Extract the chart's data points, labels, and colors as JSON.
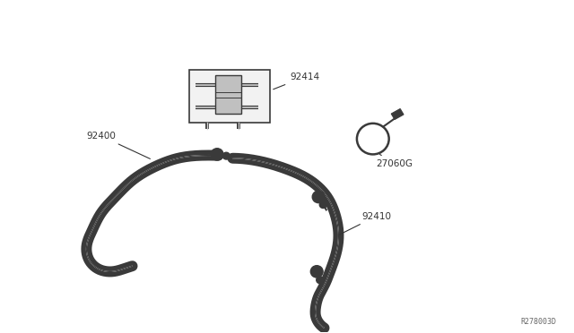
{
  "bg_color": "#ffffff",
  "line_color": "#3a3a3a",
  "label_color": "#333333",
  "diagram_code": "R278003D",
  "figsize": [
    6.4,
    3.72
  ],
  "dpi": 100
}
